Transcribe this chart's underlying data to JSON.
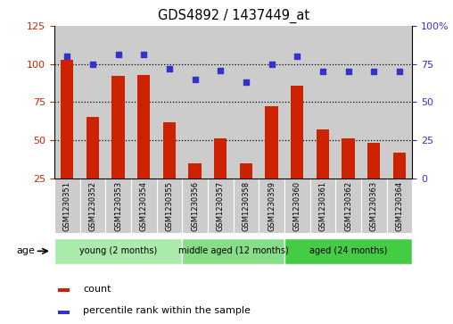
{
  "title": "GDS4892 / 1437449_at",
  "samples": [
    "GSM1230351",
    "GSM1230352",
    "GSM1230353",
    "GSM1230354",
    "GSM1230355",
    "GSM1230356",
    "GSM1230357",
    "GSM1230358",
    "GSM1230359",
    "GSM1230360",
    "GSM1230361",
    "GSM1230362",
    "GSM1230363",
    "GSM1230364"
  ],
  "counts": [
    103,
    65,
    92,
    93,
    62,
    35,
    51,
    35,
    72,
    86,
    57,
    51,
    48,
    42
  ],
  "percentiles": [
    80,
    75,
    81,
    81,
    72,
    65,
    71,
    63,
    75,
    80,
    70,
    70,
    70,
    70
  ],
  "ylim_left": [
    25,
    125
  ],
  "ylim_right": [
    0,
    100
  ],
  "yticks_left": [
    25,
    50,
    75,
    100,
    125
  ],
  "yticks_right": [
    0,
    25,
    50,
    75,
    100
  ],
  "yticklabels_right": [
    "0",
    "25",
    "50",
    "75",
    "100%"
  ],
  "bar_color": "#cc2200",
  "dot_color": "#3333cc",
  "column_bg": "#cccccc",
  "groups": [
    {
      "label": "young (2 months)",
      "start": 0,
      "end": 5,
      "color": "#aaeaaa"
    },
    {
      "label": "middle aged (12 months)",
      "start": 5,
      "end": 9,
      "color": "#88dd88"
    },
    {
      "label": "aged (24 months)",
      "start": 9,
      "end": 14,
      "color": "#44cc44"
    }
  ],
  "age_label": "age",
  "legend_count_label": "count",
  "legend_percentile_label": "percentile rank within the sample",
  "bar_width": 0.5,
  "dot_size": 25
}
